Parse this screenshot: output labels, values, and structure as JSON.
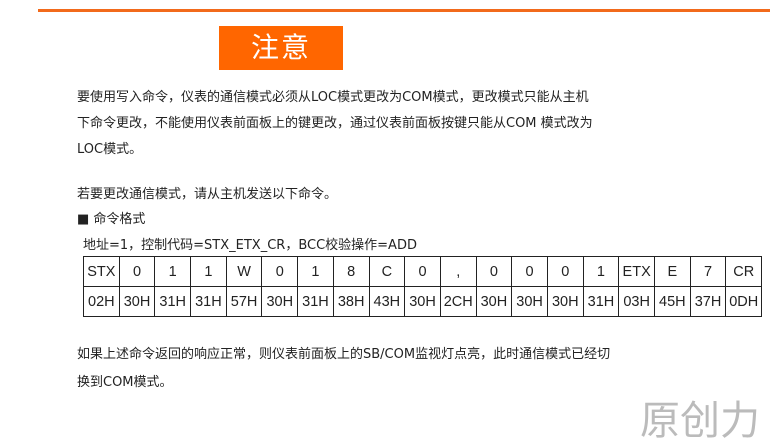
{
  "banner": {
    "title": "注意",
    "color": "#ff6600"
  },
  "paragraph1": [
    "要使用写入命令，仪表的通信模式必须从LOC模式更改为COM模式，更改模式只能从主机",
    "下命令更改，不能使用仪表前面板上的键更改，通过仪表前面板按键只能从COM 模式改为",
    "LOC模式。"
  ],
  "paragraph2": "若要更改通信模式，请从主机发送以下命令。",
  "section_heading": "■ 命令格式",
  "params": "地址=1，控制代码=STX_ETX_CR，BCC校验操作=ADD",
  "command_table": {
    "chars": [
      "STX",
      "0",
      "1",
      "1",
      "W",
      "0",
      "1",
      "8",
      "C",
      "0",
      ",",
      "0",
      "0",
      "0",
      "1",
      "ETX",
      "E",
      "7",
      "CR"
    ],
    "hex": [
      "02H",
      "30H",
      "31H",
      "31H",
      "57H",
      "30H",
      "31H",
      "38H",
      "43H",
      "30H",
      "2CH",
      "30H",
      "30H",
      "30H",
      "31H",
      "03H",
      "45H",
      "37H",
      "0DH"
    ]
  },
  "paragraph3": [
    "如果上述命令返回的响应正常，则仪表前面板上的SB/COM监视灯点亮，此时通信模式已经切",
    "换到COM模式。"
  ],
  "watermark": "原创力"
}
